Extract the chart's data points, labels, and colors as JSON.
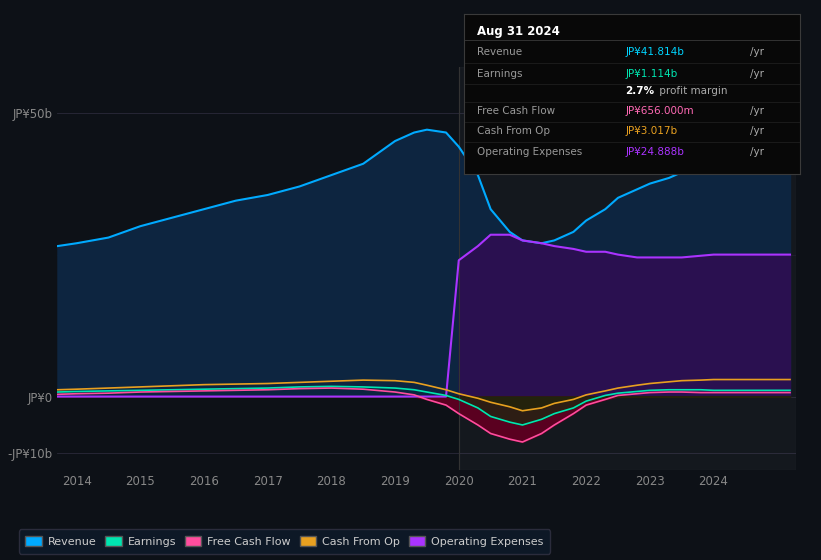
{
  "background_color": "#0d1117",
  "plot_bg_color": "#0d1117",
  "title": "Aug 31 2024",
  "ylim": [
    -13,
    58
  ],
  "ytick_50_label": "JP¥50b",
  "ytick_0_label": "JP¥0",
  "ytick_neg10_label": "-JP¥10b",
  "ytick_50_val": 50,
  "ytick_0_val": 0,
  "ytick_neg10_val": -10,
  "xlim_start": 2013.7,
  "xlim_end": 2025.3,
  "xticks": [
    2014,
    2015,
    2016,
    2017,
    2018,
    2019,
    2020,
    2021,
    2022,
    2023,
    2024
  ],
  "revenue_color": "#00aaff",
  "revenue_fill": "#0d2540",
  "earnings_color": "#00e5b0",
  "fcf_color": "#ff4d9e",
  "cashop_color": "#e8a020",
  "opex_color": "#aa33ff",
  "opex_fill": "#2a1050",
  "neg_fill": "#4a0820",
  "years": [
    2013.7,
    2014.0,
    2014.5,
    2015.0,
    2015.5,
    2016.0,
    2016.5,
    2017.0,
    2017.5,
    2018.0,
    2018.5,
    2019.0,
    2019.3,
    2019.5,
    2019.8,
    2020.0,
    2020.3,
    2020.5,
    2020.8,
    2021.0,
    2021.3,
    2021.5,
    2021.8,
    2022.0,
    2022.3,
    2022.5,
    2022.8,
    2023.0,
    2023.3,
    2023.5,
    2023.8,
    2024.0,
    2024.3,
    2024.5,
    2024.8,
    2025.0,
    2025.2
  ],
  "revenue": [
    26.5,
    27.0,
    28.0,
    30.0,
    31.5,
    33.0,
    34.5,
    35.5,
    37.0,
    39.0,
    41.0,
    45.0,
    46.5,
    47.0,
    46.5,
    44.0,
    39.0,
    33.0,
    29.0,
    27.5,
    27.0,
    27.5,
    29.0,
    31.0,
    33.0,
    35.0,
    36.5,
    37.5,
    38.5,
    39.5,
    40.0,
    40.5,
    41.0,
    41.5,
    41.8,
    42.0,
    42.0
  ],
  "earnings": [
    0.8,
    0.9,
    1.0,
    1.1,
    1.2,
    1.3,
    1.4,
    1.5,
    1.7,
    1.8,
    1.7,
    1.5,
    1.2,
    0.8,
    0.2,
    -0.5,
    -2.0,
    -3.5,
    -4.5,
    -5.0,
    -4.0,
    -3.0,
    -2.0,
    -0.8,
    0.2,
    0.6,
    0.9,
    1.1,
    1.2,
    1.2,
    1.2,
    1.1,
    1.1,
    1.1,
    1.1,
    1.1,
    1.1
  ],
  "fcf": [
    0.4,
    0.5,
    0.6,
    0.8,
    0.9,
    1.0,
    1.1,
    1.2,
    1.4,
    1.5,
    1.3,
    0.8,
    0.3,
    -0.5,
    -1.5,
    -3.0,
    -5.0,
    -6.5,
    -7.5,
    -8.0,
    -6.5,
    -5.0,
    -3.0,
    -1.5,
    -0.5,
    0.2,
    0.5,
    0.7,
    0.8,
    0.8,
    0.7,
    0.7,
    0.7,
    0.7,
    0.7,
    0.7,
    0.7
  ],
  "cashop": [
    1.2,
    1.3,
    1.5,
    1.7,
    1.9,
    2.1,
    2.2,
    2.3,
    2.5,
    2.7,
    2.9,
    2.8,
    2.5,
    2.0,
    1.2,
    0.5,
    -0.3,
    -1.0,
    -1.8,
    -2.5,
    -2.0,
    -1.2,
    -0.5,
    0.3,
    1.0,
    1.5,
    2.0,
    2.3,
    2.6,
    2.8,
    2.9,
    3.0,
    3.0,
    3.0,
    3.0,
    3.0,
    3.0
  ],
  "opex": [
    0.0,
    0.0,
    0.0,
    0.0,
    0.0,
    0.0,
    0.0,
    0.0,
    0.0,
    0.0,
    0.0,
    0.0,
    0.0,
    0.0,
    0.0,
    24.0,
    26.5,
    28.5,
    28.5,
    27.5,
    27.0,
    26.5,
    26.0,
    25.5,
    25.5,
    25.0,
    24.5,
    24.5,
    24.5,
    24.5,
    24.8,
    25.0,
    25.0,
    25.0,
    25.0,
    25.0,
    25.0
  ],
  "opex_start_year": 2020.0,
  "info_box_rows": [
    {
      "label": "Revenue",
      "value": "JP¥41.814b",
      "unit": "/yr",
      "color": "#00d4ff"
    },
    {
      "label": "Earnings",
      "value": "JP¥1.114b",
      "unit": "/yr",
      "color": "#00e5b0"
    },
    {
      "label": "",
      "value": "2.7%",
      "unit": " profit margin",
      "color": "#ffffff"
    },
    {
      "label": "Free Cash Flow",
      "value": "JP¥656.000m",
      "unit": "/yr",
      "color": "#ff69b4"
    },
    {
      "label": "Cash From Op",
      "value": "JP¥3.017b",
      "unit": "/yr",
      "color": "#e8a020"
    },
    {
      "label": "Operating Expenses",
      "value": "JP¥24.888b",
      "unit": "/yr",
      "color": "#aa33ff"
    }
  ],
  "legend_items": [
    {
      "label": "Revenue",
      "color": "#00aaff"
    },
    {
      "label": "Earnings",
      "color": "#00e5b0"
    },
    {
      "label": "Free Cash Flow",
      "color": "#ff4d9e"
    },
    {
      "label": "Cash From Op",
      "color": "#e8a020"
    },
    {
      "label": "Operating Expenses",
      "color": "#aa33ff"
    }
  ]
}
